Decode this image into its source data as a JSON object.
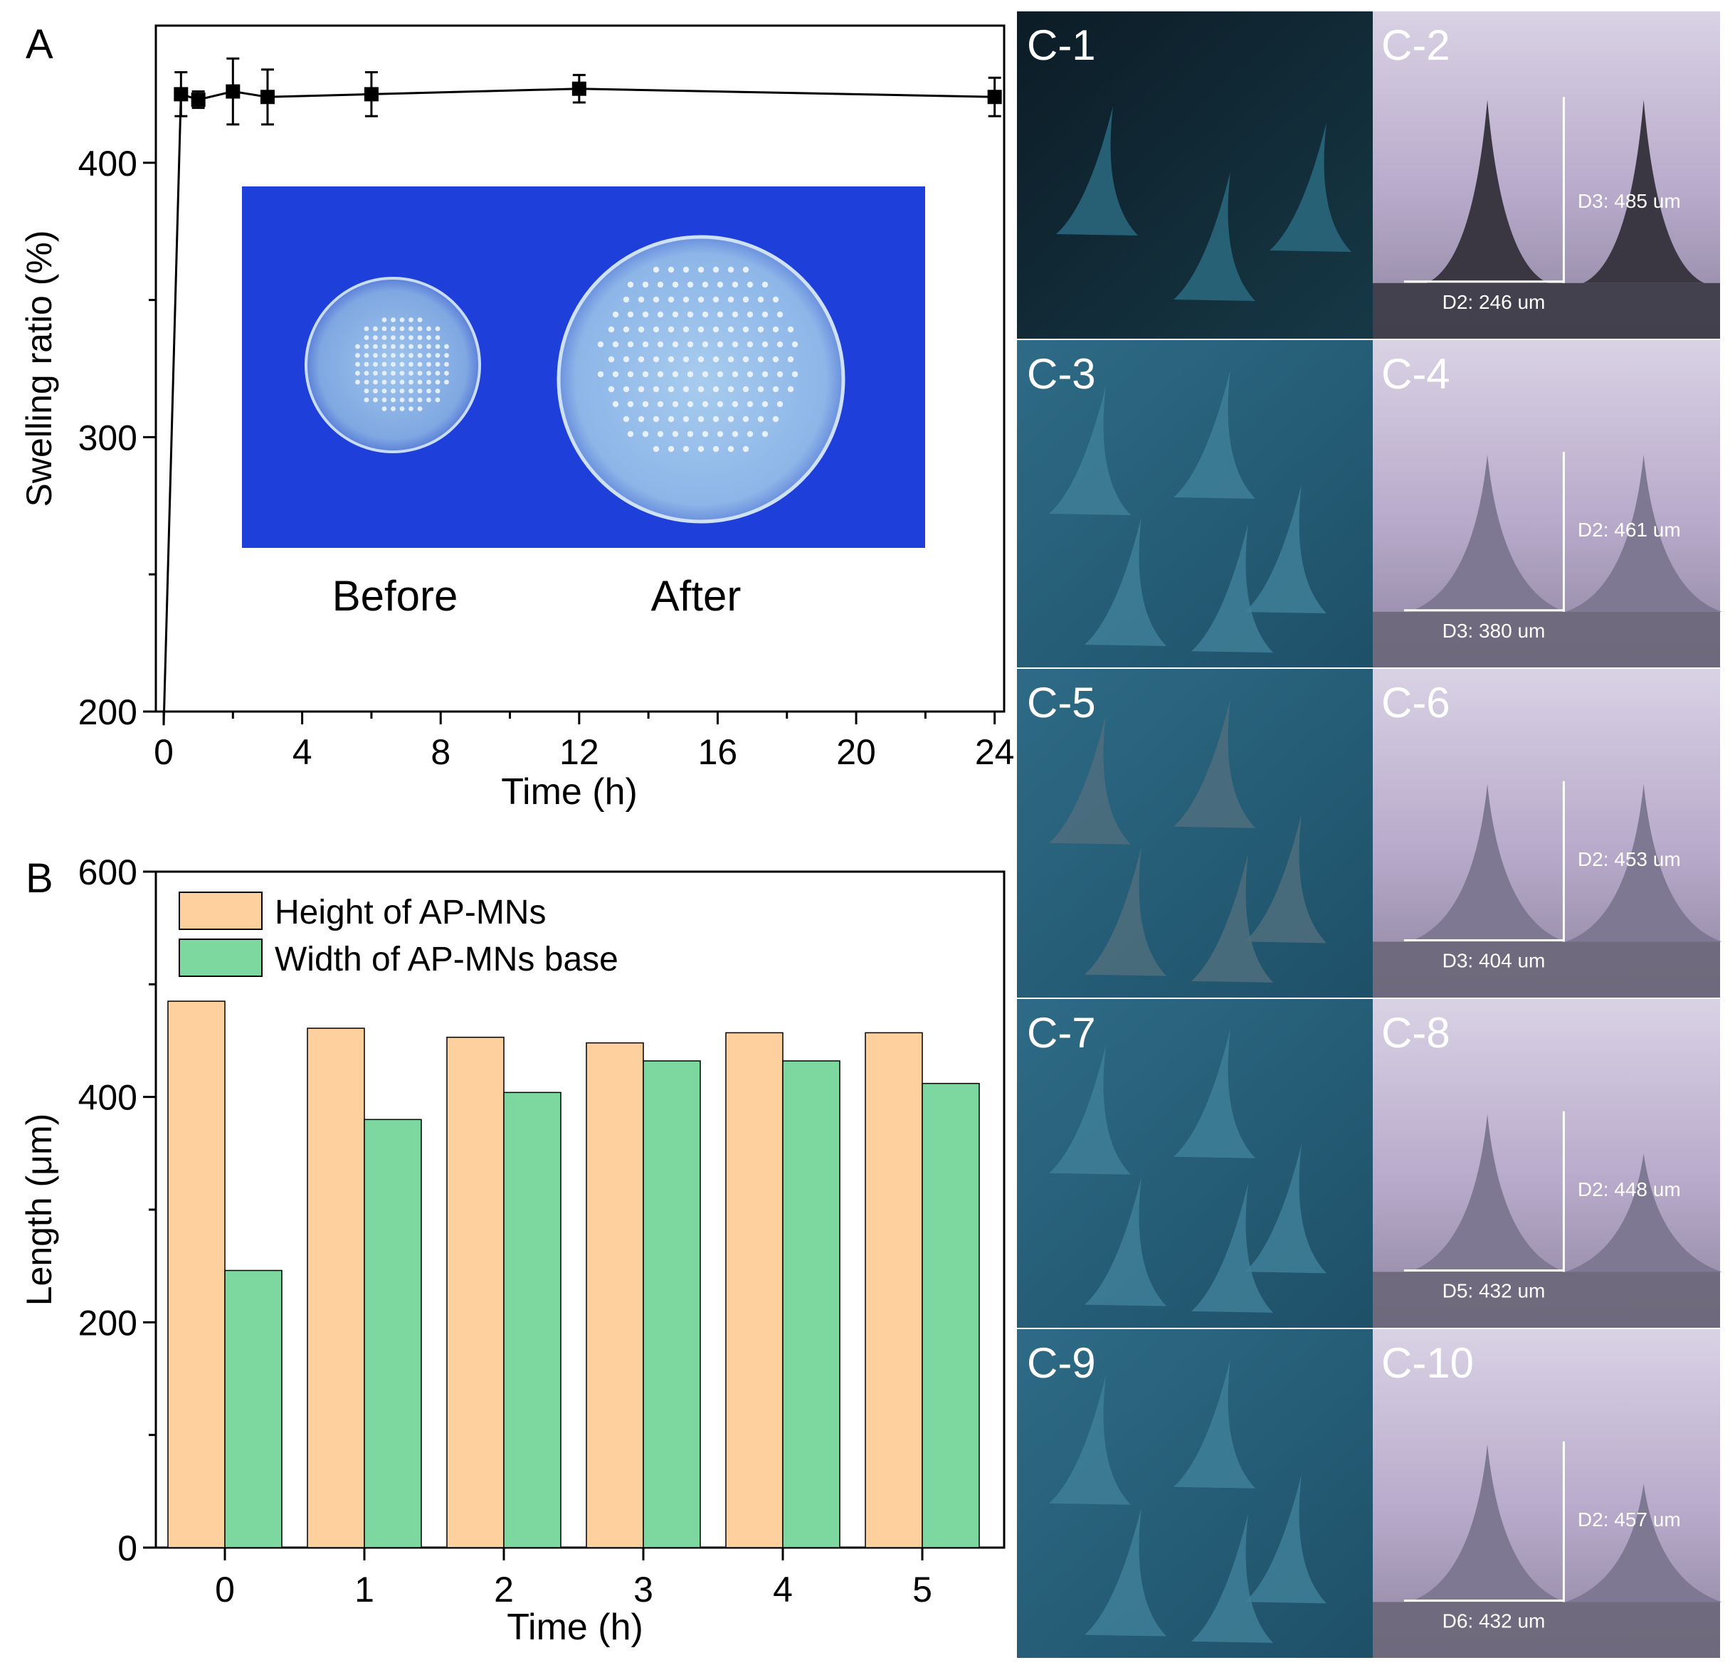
{
  "panels": {
    "a_label": "A",
    "b_label": "B",
    "photo_labels": [
      "C-1",
      "C-2",
      "C-3",
      "C-4",
      "C-5",
      "C-6",
      "C-7",
      "C-8",
      "C-9",
      "C-10"
    ]
  },
  "inset": {
    "before_label": "Before",
    "after_label": "After"
  },
  "measurements": {
    "c2": [
      "D3:  485 um",
      "D2:  246 um"
    ],
    "c4": [
      "D2:  461 um",
      "D3:  380 um"
    ],
    "c6": [
      "D2:  453 um",
      "D3:  404 um"
    ],
    "c8": [
      "D2:  448 um",
      "D5:  432 um"
    ],
    "c10": [
      "D2:  457 um",
      "D6:  432 um"
    ]
  },
  "colors": {
    "height_bar": "#FDD09E",
    "width_bar": "#7DD8A0",
    "line": "#000000",
    "inset_bg": "#1E3FD9",
    "dark_photo": "#0F2430",
    "mid_photo": "#2A5F75",
    "lav_photo": "#B4A6C6"
  },
  "chart_data": [
    {
      "type": "line",
      "x": [
        0,
        0.5,
        1,
        2,
        3,
        6,
        12,
        24
      ],
      "y": [
        0,
        425,
        423,
        426,
        424,
        425,
        427,
        424
      ],
      "error": [
        0,
        8,
        3,
        12,
        10,
        8,
        5,
        7
      ],
      "xlabel": "Time (h)",
      "ylabel": "Swelling ratio (%)",
      "xlim": [
        0,
        24.5
      ],
      "ylim": [
        200,
        450
      ],
      "xticks": [
        "0",
        "4",
        "8",
        "12",
        "16",
        "20",
        "24"
      ],
      "yticks": [
        "200",
        "300",
        "400"
      ],
      "grid": false
    },
    {
      "type": "bar",
      "categories": [
        "0",
        "1",
        "2",
        "3",
        "4",
        "5"
      ],
      "series": [
        {
          "name": "Height of AP-MNs",
          "values": [
            485,
            461,
            453,
            448,
            457,
            457
          ]
        },
        {
          "name": "Width of AP-MNs base",
          "values": [
            246,
            380,
            404,
            432,
            432,
            412
          ]
        }
      ],
      "xlabel": "Time (h)",
      "ylabel": "Length (μm)",
      "ylim": [
        0,
        600
      ],
      "yticks": [
        "0",
        "200",
        "400",
        "600"
      ],
      "legend": "top-left",
      "grid": false
    }
  ]
}
